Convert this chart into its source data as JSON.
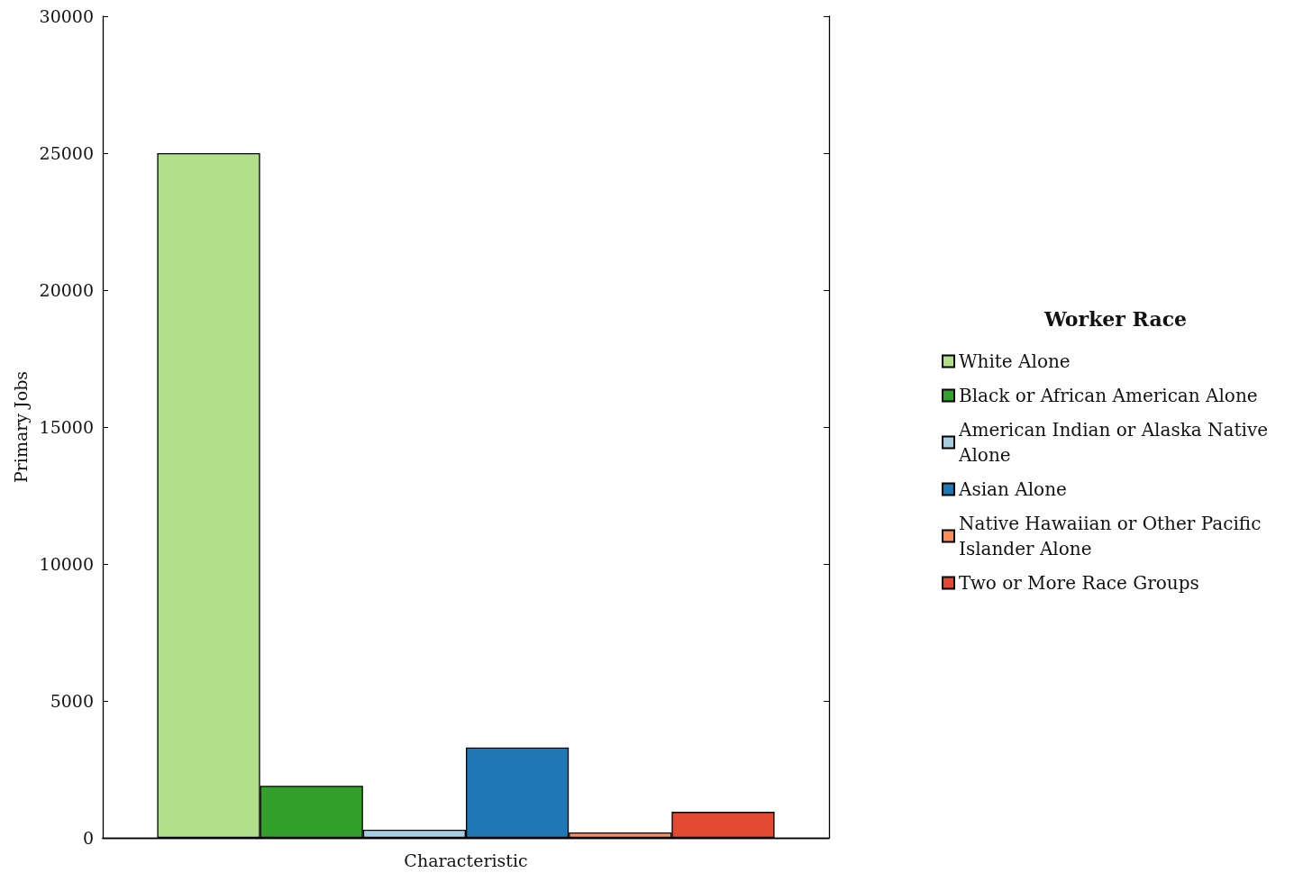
{
  "chart_data": {
    "type": "bar",
    "xlabel": "Characteristic",
    "ylabel": "Primary Jobs",
    "legend_title": "Worker Race",
    "categories": [
      null
    ],
    "series": [
      {
        "name": "White Alone",
        "color": "#b2df8a",
        "values": [
          25000
        ]
      },
      {
        "name": "Black or African American Alone",
        "color": "#33a02c",
        "values": [
          1900
        ]
      },
      {
        "name": "American Indian or Alaska Native Alone",
        "color": "#a6cee3",
        "values": [
          300
        ]
      },
      {
        "name": "Asian Alone",
        "color": "#1f78b4",
        "values": [
          3300
        ]
      },
      {
        "name": "Native Hawaiian or Other Pacific Islander Alone",
        "color": "#fc8d59",
        "values": [
          200
        ]
      },
      {
        "name": "Two or More Race Groups",
        "color": "#e34a33",
        "values": [
          950
        ]
      }
    ],
    "ylim": [
      0,
      30000
    ],
    "yticks": [
      0,
      5000,
      10000,
      15000,
      20000,
      25000,
      30000
    ],
    "grid": false,
    "legend": "right"
  }
}
